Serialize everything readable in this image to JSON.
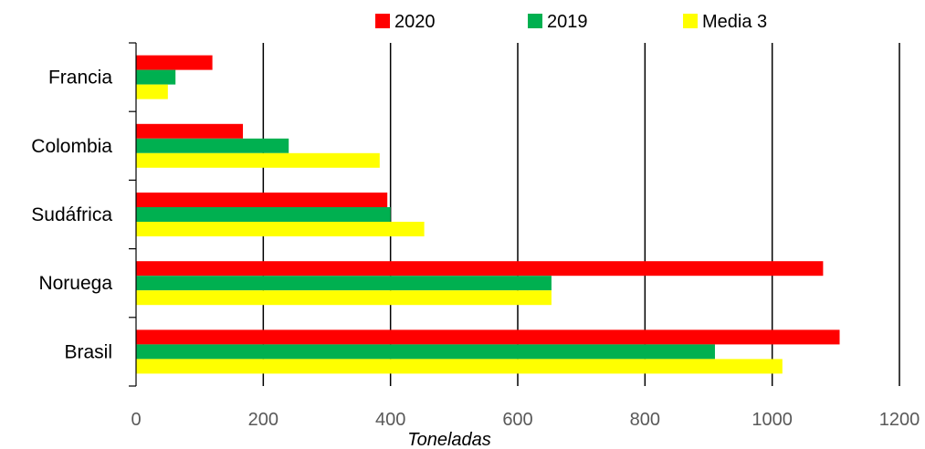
{
  "chart_data": {
    "type": "bar",
    "orientation": "horizontal",
    "categories": [
      "Francia",
      "Colombia",
      "Sudáfrica",
      "Noruega",
      "Brasil"
    ],
    "series": [
      {
        "name": "2020",
        "color": "#ff0000",
        "values": [
          120,
          168,
          395,
          1080,
          1106
        ]
      },
      {
        "name": "2019",
        "color": "#00b050",
        "values": [
          62,
          240,
          400,
          653,
          910
        ]
      },
      {
        "name": "Media 3",
        "color": "#ffff00",
        "values": [
          50,
          383,
          453,
          653,
          1016
        ]
      }
    ],
    "title": "",
    "xlabel": "Toneladas",
    "ylabel": "",
    "xlim": [
      0,
      1200
    ],
    "xticks": [
      "0",
      "200",
      "400",
      "600",
      "800",
      "1000",
      "1200"
    ],
    "grid": "vertical",
    "legend_position": "top"
  }
}
